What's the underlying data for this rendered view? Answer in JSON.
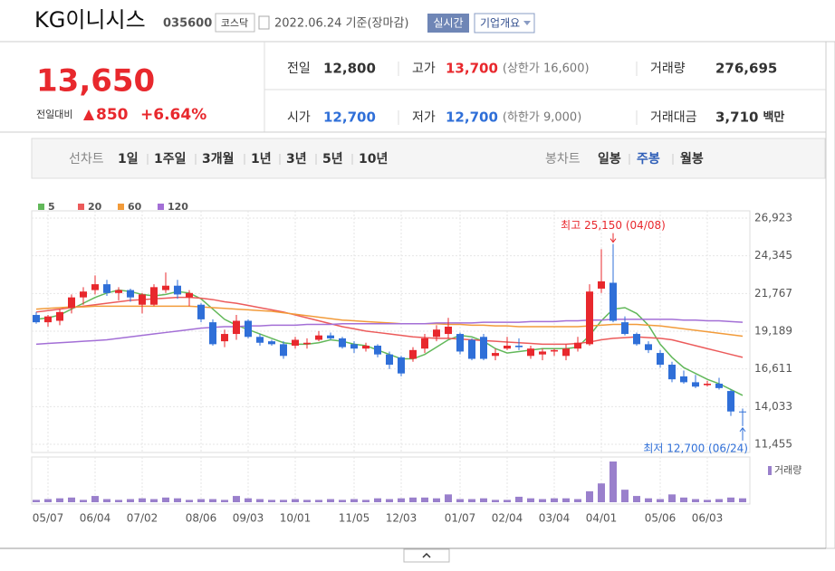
{
  "header": {
    "title": "KG이니시스",
    "code": "035600",
    "market": "코스닥",
    "date": "2022.06.24 기준(장마감)",
    "realtime": "실시간",
    "overview": "기업개요"
  },
  "quote": {
    "price": "13,650",
    "change_label": "전일대비",
    "change": "850",
    "change_rate": "+6.64%",
    "rows": [
      [
        {
          "label": "전일",
          "value": "12,800"
        },
        {
          "label": "고가",
          "value": "13,700",
          "note": "(상한가 16,600)"
        },
        {
          "label": "거래량",
          "value": "276,695"
        }
      ],
      [
        {
          "label": "시가",
          "value": "12,700"
        },
        {
          "label": "저가",
          "value": "12,700",
          "note": "(하한가 9,000)"
        },
        {
          "label": "거래대금",
          "value": "3,710",
          "note": "백만"
        }
      ]
    ]
  },
  "tabs": {
    "line_label": "선차트",
    "line_items": [
      "1일",
      "1주일",
      "3개월",
      "1년",
      "3년",
      "5년",
      "10년"
    ],
    "candle_label": "봉차트",
    "candle_items": [
      "일봉",
      "주봉",
      "월봉"
    ],
    "candle_active": 1
  },
  "chart_data": {
    "type": "candlestick",
    "categories": [
      null,
      "05/07",
      null,
      null,
      null,
      "06/04",
      null,
      null,
      null,
      "07/02",
      null,
      null,
      null,
      null,
      "08/06",
      null,
      null,
      null,
      "09/03",
      null,
      null,
      null,
      "10/01",
      null,
      null,
      null,
      null,
      "11/05",
      null,
      null,
      null,
      "12/03",
      null,
      null,
      null,
      null,
      "01/07",
      null,
      null,
      null,
      "02/04",
      null,
      null,
      null,
      "03/04",
      null,
      null,
      null,
      "04/01",
      null,
      null,
      null,
      null,
      "05/06",
      null,
      null,
      null,
      "06/03",
      null,
      null,
      null
    ],
    "open": [
      20300,
      19800,
      19900,
      20800,
      21500,
      22000,
      22400,
      21800,
      22000,
      21000,
      21000,
      22000,
      22300,
      21500,
      21000,
      19800,
      18500,
      19000,
      19900,
      18800,
      18500,
      18300,
      18200,
      18300,
      18600,
      18900,
      18700,
      18300,
      18000,
      18200,
      17600,
      17400,
      17300,
      18000,
      18800,
      19000,
      19000,
      18600,
      18800,
      17500,
      18000,
      18200,
      17500,
      17600,
      17800,
      17500,
      18000,
      18300,
      22100,
      22500,
      19800,
      19000,
      18300,
      17700,
      16900,
      16100,
      15700,
      15500,
      15600,
      15100,
      13700
    ],
    "high": [
      20500,
      20300,
      20700,
      21700,
      22200,
      23000,
      22700,
      22200,
      22100,
      21800,
      22400,
      23200,
      22700,
      22000,
      21100,
      20000,
      19300,
      20300,
      20000,
      19000,
      18600,
      18500,
      18800,
      18700,
      19200,
      19100,
      18800,
      18500,
      18400,
      18300,
      17800,
      17500,
      18100,
      19000,
      19600,
      20100,
      19100,
      18700,
      19000,
      18000,
      18800,
      18700,
      18200,
      18000,
      18000,
      18300,
      18800,
      22400,
      24800,
      25150,
      20200,
      19100,
      18500,
      17900,
      17100,
      16500,
      16200,
      15800,
      16000,
      15200,
      13900
    ],
    "low": [
      19700,
      19500,
      19600,
      20400,
      21000,
      21700,
      21600,
      21300,
      21200,
      20400,
      20900,
      21800,
      21400,
      20900,
      19800,
      18200,
      18100,
      18600,
      18700,
      18200,
      18200,
      17300,
      18000,
      18000,
      18500,
      18600,
      18000,
      17700,
      17800,
      17400,
      16600,
      16100,
      17100,
      17700,
      18500,
      18700,
      17600,
      17200,
      17200,
      17200,
      17900,
      17900,
      17300,
      17200,
      17500,
      17200,
      17800,
      18200,
      21800,
      19800,
      18900,
      18200,
      17700,
      16700,
      15700,
      15600,
      15300,
      15400,
      15200,
      13400,
      12700
    ],
    "close": [
      19800,
      20200,
      20500,
      21500,
      21900,
      22400,
      21800,
      22000,
      21500,
      21700,
      22200,
      22300,
      21700,
      21800,
      20000,
      18300,
      19000,
      19900,
      18800,
      18400,
      18300,
      17500,
      18600,
      18400,
      18900,
      18700,
      18100,
      18000,
      18200,
      17600,
      16900,
      16300,
      17900,
      18700,
      19300,
      19500,
      17800,
      17300,
      17300,
      17700,
      18200,
      18100,
      18000,
      17800,
      17900,
      18000,
      18400,
      21900,
      22600,
      19900,
      19000,
      18300,
      17900,
      16900,
      15900,
      15700,
      15400,
      15600,
      15300,
      13700,
      13650
    ],
    "up_color": "#e8282d",
    "down_color": "#2f6fd8",
    "series": [
      {
        "name": "5",
        "color": "#62b85a",
        "values": [
          20000,
          20100,
          20300,
          20700,
          21100,
          21500,
          21800,
          22000,
          21900,
          21700,
          21600,
          21700,
          21900,
          21800,
          21400,
          20700,
          20000,
          19600,
          19300,
          19000,
          18700,
          18400,
          18300,
          18300,
          18400,
          18600,
          18500,
          18300,
          18200,
          17900,
          17600,
          17300,
          17300,
          17600,
          18100,
          18600,
          18900,
          18800,
          18500,
          18000,
          17700,
          17800,
          17900,
          18000,
          18000,
          18000,
          18100,
          18900,
          19900,
          20700,
          20800,
          20400,
          19600,
          18300,
          17400,
          16700,
          16300,
          15900,
          15600,
          15200,
          14800
        ]
      },
      {
        "name": "20",
        "color": "#ec5b5b",
        "values": [
          20500,
          20600,
          20700,
          20800,
          20900,
          21000,
          21100,
          21200,
          21300,
          21350,
          21400,
          21450,
          21500,
          21500,
          21450,
          21350,
          21200,
          21100,
          20950,
          20800,
          20650,
          20500,
          20300,
          20100,
          19900,
          19700,
          19500,
          19350,
          19200,
          19100,
          19000,
          18900,
          18800,
          18750,
          18700,
          18700,
          18650,
          18600,
          18550,
          18500,
          18450,
          18400,
          18350,
          18300,
          18300,
          18300,
          18350,
          18450,
          18600,
          18700,
          18750,
          18800,
          18750,
          18700,
          18600,
          18400,
          18200,
          18000,
          17800,
          17600,
          17400
        ]
      },
      {
        "name": "60",
        "color": "#f29b3a",
        "values": [
          20700,
          20750,
          20800,
          20850,
          20850,
          20900,
          20900,
          20900,
          20900,
          20900,
          20900,
          20900,
          20900,
          20900,
          20850,
          20800,
          20750,
          20700,
          20650,
          20600,
          20550,
          20450,
          20350,
          20250,
          20150,
          20050,
          19950,
          19900,
          19850,
          19800,
          19750,
          19700,
          19700,
          19700,
          19700,
          19650,
          19650,
          19600,
          19600,
          19550,
          19550,
          19500,
          19500,
          19500,
          19500,
          19500,
          19500,
          19550,
          19600,
          19650,
          19650,
          19650,
          19600,
          19550,
          19450,
          19350,
          19250,
          19150,
          19050,
          18950,
          18850
        ]
      },
      {
        "name": "120",
        "color": "#a36fd6",
        "values": [
          18300,
          18350,
          18400,
          18450,
          18500,
          18550,
          18600,
          18700,
          18800,
          18900,
          19000,
          19100,
          19200,
          19300,
          19400,
          19450,
          19500,
          19500,
          19550,
          19550,
          19600,
          19600,
          19600,
          19650,
          19650,
          19650,
          19700,
          19700,
          19700,
          19700,
          19700,
          19700,
          19700,
          19700,
          19750,
          19750,
          19750,
          19750,
          19800,
          19800,
          19800,
          19800,
          19850,
          19850,
          19850,
          19900,
          19900,
          19950,
          19950,
          20000,
          20000,
          20000,
          20000,
          20000,
          20000,
          19950,
          19950,
          19900,
          19900,
          19850,
          19800
        ]
      }
    ],
    "volume": {
      "name": "거래량",
      "color": "#9a80cc",
      "values": [
        150000,
        200000,
        250000,
        300000,
        150000,
        400000,
        200000,
        150000,
        200000,
        250000,
        200000,
        300000,
        250000,
        150000,
        200000,
        200000,
        150000,
        400000,
        250000,
        200000,
        150000,
        150000,
        200000,
        150000,
        150000,
        200000,
        150000,
        200000,
        150000,
        250000,
        200000,
        250000,
        300000,
        300000,
        250000,
        500000,
        200000,
        200000,
        250000,
        150000,
        150000,
        350000,
        250000,
        200000,
        250000,
        250000,
        200000,
        700000,
        1200000,
        2600000,
        800000,
        400000,
        250000,
        200000,
        500000,
        300000,
        200000,
        150000,
        200000,
        300000,
        250000
      ]
    },
    "ylim": [
      11455,
      26923
    ],
    "yticks": [
      {
        "value": 11455,
        "label": "11,455"
      },
      {
        "value": 14033,
        "label": "14,033"
      },
      {
        "value": 16611,
        "label": "16,611"
      },
      {
        "value": 19189,
        "label": "19,189"
      },
      {
        "value": 21767,
        "label": "21,767"
      },
      {
        "value": 24345,
        "label": "24,345"
      },
      {
        "value": 26923,
        "label": "26,923"
      }
    ],
    "grid": true,
    "annotations": {
      "max": "최고 25,150 (04/08)",
      "min": "최저 12,700 (06/24)"
    }
  }
}
